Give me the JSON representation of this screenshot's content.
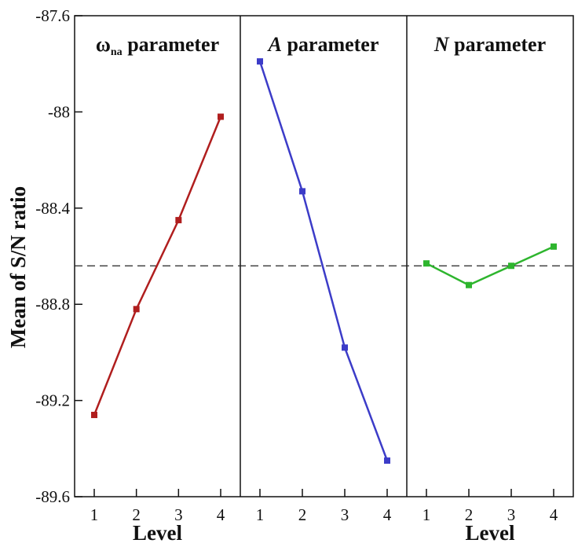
{
  "chart_data": {
    "type": "line",
    "ylabel": "Mean of S/N ratio",
    "xlabel": "Level",
    "ylim": [
      -89.6,
      -87.6
    ],
    "yticks": [
      -87.6,
      -88,
      -88.4,
      -88.8,
      -89.2,
      -89.6
    ],
    "ytick_labels": [
      "-87.6",
      "-88",
      "-88.4",
      "-88.8",
      "-89.2",
      "-89.6"
    ],
    "x": [
      1,
      2,
      3,
      4
    ],
    "x_labels": [
      "1",
      "2",
      "3",
      "4"
    ],
    "reference_line": {
      "value": -88.64,
      "style": "dashed"
    },
    "panels": [
      {
        "name": "omega",
        "title_main": "ω",
        "title_sub": "na",
        "title_rest": " parameter",
        "color": "#b01e1e",
        "values": [
          -89.26,
          -88.82,
          -88.45,
          -88.02
        ],
        "show_xlabel": true
      },
      {
        "name": "a",
        "title_main": "A",
        "title_sub": "",
        "title_rest": " parameter",
        "color": "#3c3cc8",
        "values": [
          -87.79,
          -88.33,
          -88.98,
          -89.45
        ],
        "show_xlabel": false
      },
      {
        "name": "n",
        "title_main": "N",
        "title_sub": "",
        "title_rest": " parameter",
        "color": "#2eb52e",
        "values": [
          -88.63,
          -88.72,
          -88.64,
          -88.56
        ],
        "show_xlabel": true
      }
    ]
  }
}
